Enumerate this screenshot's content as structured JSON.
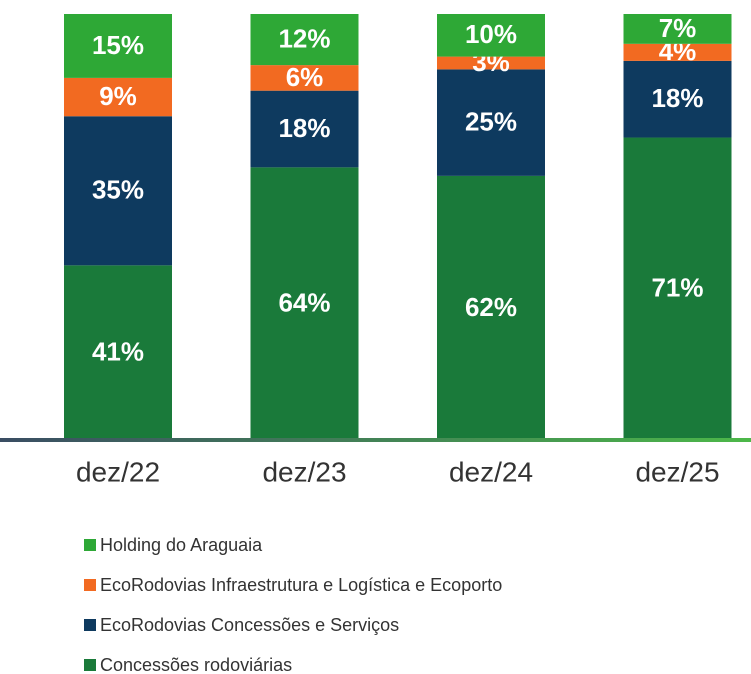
{
  "chart_data": {
    "type": "stacked_bar_percent",
    "categories": [
      "dez/22",
      "dez/23",
      "dez/24",
      "dez/25"
    ],
    "series": [
      {
        "name": "Concessões rodoviárias",
        "color": "#1a7a3a",
        "values": [
          41,
          64,
          62,
          71
        ],
        "value_labels": [
          "41%",
          "64%",
          "62%",
          "71%"
        ]
      },
      {
        "name": "EcoRodovias Concessões e Serviços",
        "color": "#0e3a5f",
        "values": [
          35,
          18,
          25,
          18
        ],
        "value_labels": [
          "35%",
          "18%",
          "25%",
          "18%"
        ]
      },
      {
        "name": "EcoRodovias Infraestrutura e Logística e Ecoporto",
        "color": "#f26a21",
        "values": [
          9,
          6,
          3,
          4
        ],
        "value_labels": [
          "9%",
          "6%",
          "3%",
          "4%"
        ]
      },
      {
        "name": "Holding do Araguaia",
        "color": "#2ea836",
        "values": [
          15,
          12,
          10,
          7
        ],
        "value_labels": [
          "15%",
          "12%",
          "10%",
          "7%"
        ]
      }
    ]
  }
}
